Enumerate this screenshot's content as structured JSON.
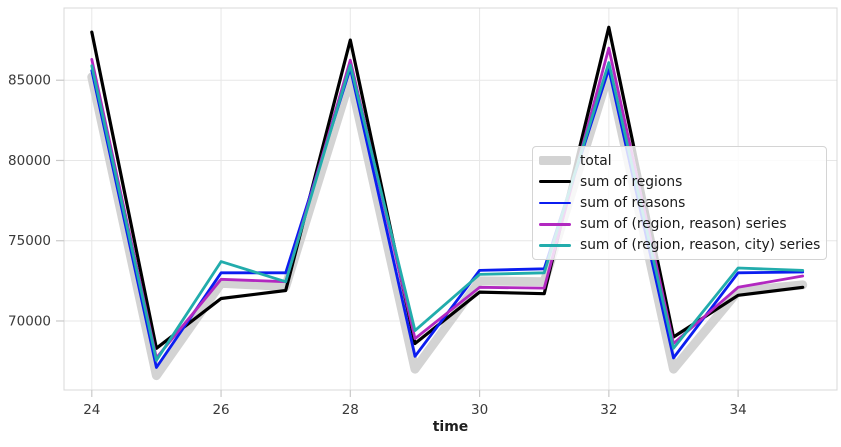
{
  "chart_data": {
    "type": "line",
    "title": "",
    "xlabel": "time",
    "ylabel": "",
    "x": [
      24,
      25,
      26,
      27,
      28,
      29,
      30,
      31,
      32,
      33,
      34,
      35
    ],
    "series": [
      {
        "name": "total",
        "color": "#d3d3d3",
        "line_width": 9,
        "values": [
          85200,
          66600,
          72350,
          72150,
          85100,
          67000,
          72500,
          72450,
          85450,
          67000,
          71850,
          72250
        ]
      },
      {
        "name": "sum of regions",
        "color": "#000000",
        "line_width": 3.2,
        "values": [
          88000,
          68300,
          71400,
          71900,
          87500,
          68600,
          71800,
          71700,
          88300,
          69000,
          71600,
          72100
        ]
      },
      {
        "name": "sum of reasons",
        "color": "#0b1df0",
        "line_width": 2.8,
        "values": [
          85600,
          67100,
          73000,
          73000,
          85750,
          67800,
          73150,
          73250,
          85700,
          67700,
          73000,
          73050
        ]
      },
      {
        "name": "sum of (region, reason) series",
        "color": "#b228c0",
        "line_width": 2.8,
        "values": [
          86300,
          67700,
          72600,
          72450,
          86250,
          68900,
          72100,
          72050,
          87000,
          68600,
          72100,
          72800
        ]
      },
      {
        "name": "sum of (region, reason, city) series",
        "color": "#22acac",
        "line_width": 2.8,
        "values": [
          85900,
          67550,
          73700,
          72450,
          85950,
          69400,
          72900,
          73000,
          86100,
          68300,
          73300,
          73150
        ]
      }
    ],
    "xticks": [
      24,
      26,
      28,
      30,
      32,
      34
    ],
    "yticks": [
      70000,
      75000,
      80000,
      85000
    ],
    "xlim": [
      23.57,
      35.53
    ],
    "ylim": [
      65700,
      89500
    ],
    "grid": true,
    "legend_position": "center-right"
  }
}
